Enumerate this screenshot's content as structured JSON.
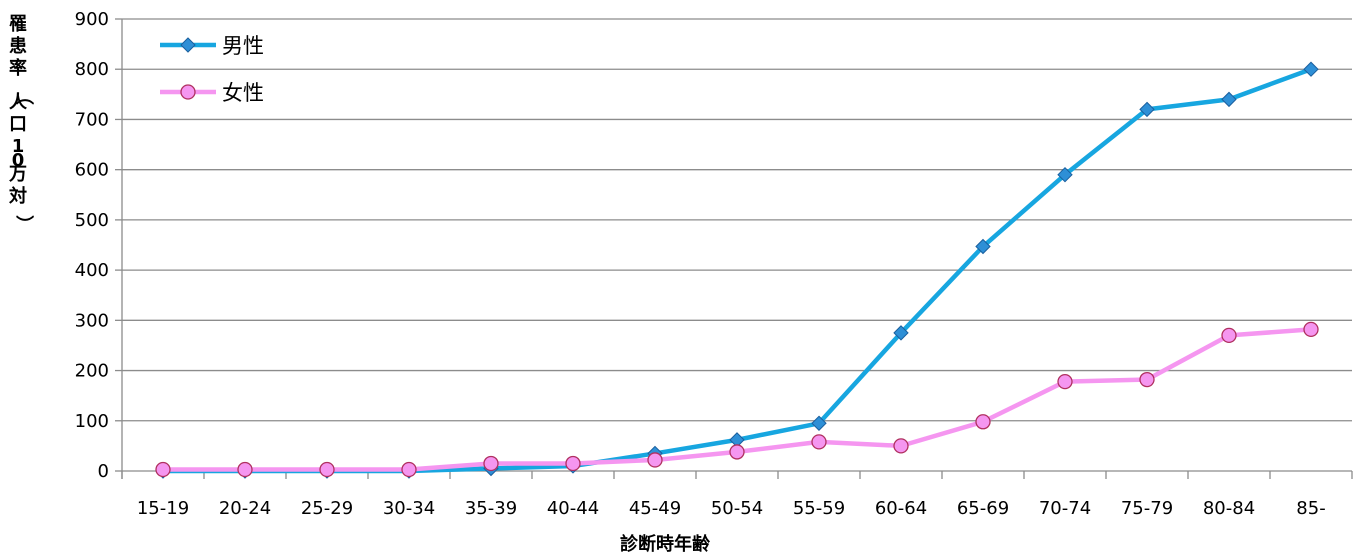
{
  "chart_data": {
    "type": "line",
    "xlabel": "診断時年齢",
    "ylabel": "罹患率（人口10万対）",
    "categories": [
      "15-19",
      "20-24",
      "25-29",
      "30-34",
      "35-39",
      "40-44",
      "45-49",
      "50-54",
      "55-59",
      "60-64",
      "65-69",
      "70-74",
      "75-79",
      "80-84",
      "85-"
    ],
    "ylim": [
      0,
      900
    ],
    "yticks": [
      0,
      100,
      200,
      300,
      400,
      500,
      600,
      700,
      800,
      900
    ],
    "grid": true,
    "legend_position": "top-left",
    "series": [
      {
        "name": "男性",
        "color": "#17a6e0",
        "marker": "diamond",
        "values": [
          0,
          0,
          0,
          0,
          5,
          10,
          35,
          62,
          95,
          275,
          447,
          590,
          720,
          740,
          800
        ]
      },
      {
        "name": "女性",
        "color": "#f596f0",
        "marker": "circle",
        "values": [
          3,
          3,
          3,
          3,
          15,
          15,
          22,
          38,
          58,
          50,
          98,
          178,
          182,
          270,
          282
        ]
      }
    ]
  }
}
